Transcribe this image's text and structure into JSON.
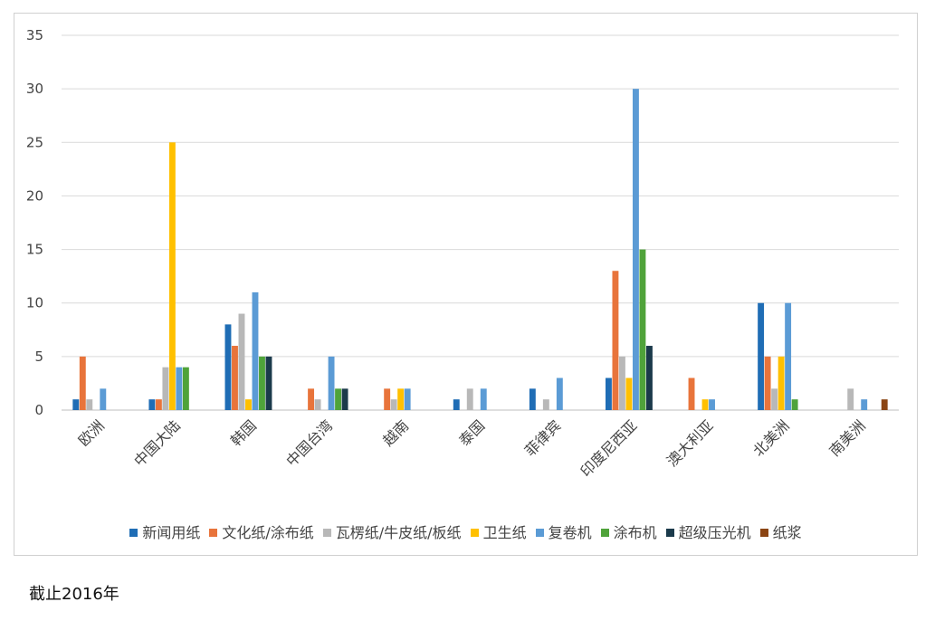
{
  "chart_data": {
    "type": "bar",
    "categories": [
      "欧洲",
      "中国大陆",
      "韩国",
      "中国台湾",
      "越南",
      "泰国",
      "菲律宾",
      "印度尼西亚",
      "澳大利亚",
      "北美洲",
      "南美洲"
    ],
    "ylim": [
      0,
      35
    ],
    "yticks": [
      0,
      5,
      10,
      15,
      20,
      25,
      30,
      35
    ],
    "grid": true,
    "legend_position": "bottom",
    "series": [
      {
        "name": "新闻用纸",
        "color": "#1F6DB5",
        "values": [
          1,
          1,
          8,
          0,
          0,
          1,
          2,
          3,
          0,
          10,
          0
        ]
      },
      {
        "name": "文化纸/涂布纸",
        "color": "#E8743B",
        "values": [
          5,
          1,
          6,
          2,
          2,
          0,
          0,
          13,
          3,
          5,
          0
        ]
      },
      {
        "name": "瓦楞纸/牛皮纸/板纸",
        "color": "#B8B8B8",
        "values": [
          1,
          4,
          9,
          1,
          1,
          2,
          1,
          5,
          0,
          2,
          2
        ]
      },
      {
        "name": "卫生纸",
        "color": "#FFC000",
        "values": [
          0,
          25,
          1,
          0,
          2,
          0,
          0,
          3,
          1,
          5,
          0
        ]
      },
      {
        "name": "复卷机",
        "color": "#5B9BD5",
        "values": [
          2,
          4,
          11,
          5,
          2,
          2,
          3,
          30,
          1,
          10,
          1
        ]
      },
      {
        "name": "涂布机",
        "color": "#4FA33A",
        "values": [
          0,
          4,
          5,
          2,
          0,
          0,
          0,
          15,
          0,
          1,
          0
        ]
      },
      {
        "name": "超级压光机",
        "color": "#1B3A4B",
        "values": [
          0,
          0,
          5,
          2,
          0,
          0,
          0,
          6,
          0,
          0,
          0
        ]
      },
      {
        "name": "纸浆",
        "color": "#8B4513",
        "values": [
          0,
          0,
          0,
          0,
          0,
          0,
          0,
          0,
          0,
          0,
          1
        ]
      }
    ]
  },
  "note": "截止2016年"
}
